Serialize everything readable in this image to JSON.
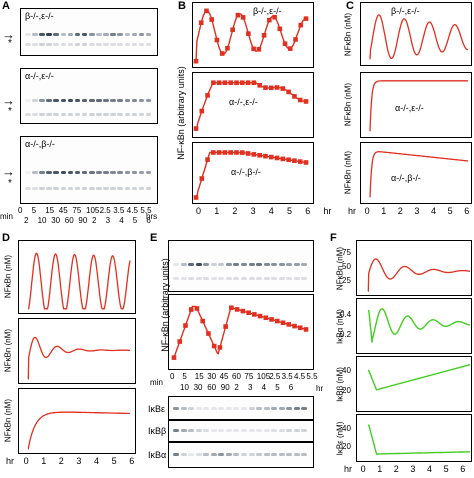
{
  "panels": {
    "A": {
      "letter": "A",
      "gels": [
        {
          "genotype": "β-/-,ε-/-"
        },
        {
          "genotype": "α-/-,ε-/-"
        },
        {
          "genotype": "α-/-,β-/-"
        }
      ],
      "arrow": "→",
      "star": "*",
      "time_axis": {
        "min_label": "min",
        "hrs_label": "hrs",
        "row1": [
          "0",
          "5",
          "15",
          "30",
          "45",
          "60",
          "75",
          "90",
          "105",
          "2",
          "2.5",
          "3",
          "3.5",
          "4",
          "4.5",
          "5",
          "5.5",
          "6"
        ],
        "row1_show": [
          "0",
          "5",
          "15",
          "45",
          "75",
          "105",
          "2.5",
          "3.5",
          "4.5",
          "5.5"
        ],
        "row2_show": [
          "2",
          "10",
          "30",
          "60",
          "90",
          "2",
          "3",
          "4",
          "5",
          "6"
        ]
      }
    },
    "B": {
      "letter": "B",
      "ylabel": "NF-κBn (arbitrary units)",
      "plots": [
        {
          "genotype": "β-/-,ε-/-"
        },
        {
          "genotype": "α-/-,ε-/-"
        },
        {
          "genotype": "α-/-,β-/-"
        }
      ],
      "xticks": [
        "0",
        "1",
        "2",
        "3",
        "4",
        "5",
        "6"
      ],
      "xunit": "hr"
    },
    "C": {
      "letter": "C",
      "ylabel": "NFκBn (nM)",
      "plots": [
        {
          "genotype": "β-/-,ε-/-"
        },
        {
          "genotype": "α-/-,ε-/-"
        },
        {
          "genotype": "α-/-,β-/-"
        }
      ],
      "xticks": [
        "hr",
        "0",
        "1",
        "2",
        "3",
        "4",
        "5",
        "6"
      ]
    },
    "D": {
      "letter": "D",
      "ylabel": "NFκBn (nM)",
      "xticks": [
        "hr",
        "0",
        "1",
        "2",
        "3",
        "4",
        "5",
        "6"
      ]
    },
    "E": {
      "letter": "E",
      "ylabel": "NF-κBn (arbitrary units)",
      "time_axis": {
        "min_label": "min",
        "hr_label": "hr",
        "row1": [
          "0",
          "5",
          "15",
          "30",
          "45",
          "60",
          "75",
          "90",
          "105",
          "2",
          "2.5",
          "3",
          "3.5",
          "4",
          "4.5",
          "5",
          "5.5",
          "6"
        ],
        "row1_show": [
          "0",
          "5",
          "15",
          "30",
          "45",
          "60",
          "75",
          "105",
          "2.5",
          "3.5",
          "4.5",
          "5.5"
        ],
        "row2_show": [
          "10",
          "30",
          "60",
          "90",
          "2",
          "3",
          "4",
          "5",
          "6"
        ]
      },
      "blots": [
        {
          "label": "IκBε"
        },
        {
          "label": "IκBβ"
        },
        {
          "label": "IκBα"
        }
      ]
    },
    "F": {
      "letter": "F",
      "plots": [
        {
          "ylabel": "NFκBn (nM)",
          "yticks": [
            "75",
            "50",
            "25"
          ]
        },
        {
          "ylabel": "IκBα (nM)",
          "yticks": [
            "0.4",
            "0.2"
          ]
        },
        {
          "ylabel": "IκBβ (nM)",
          "yticks": [
            "40",
            "20"
          ]
        },
        {
          "ylabel": "IκBε (nM)",
          "yticks": [
            "40",
            "20"
          ]
        }
      ],
      "xticks": [
        "hr",
        "0",
        "1",
        "2",
        "3",
        "4",
        "5",
        "6"
      ]
    }
  },
  "colors": {
    "red": "#e03020",
    "green": "#44cc22",
    "band": "#1a2a40"
  }
}
